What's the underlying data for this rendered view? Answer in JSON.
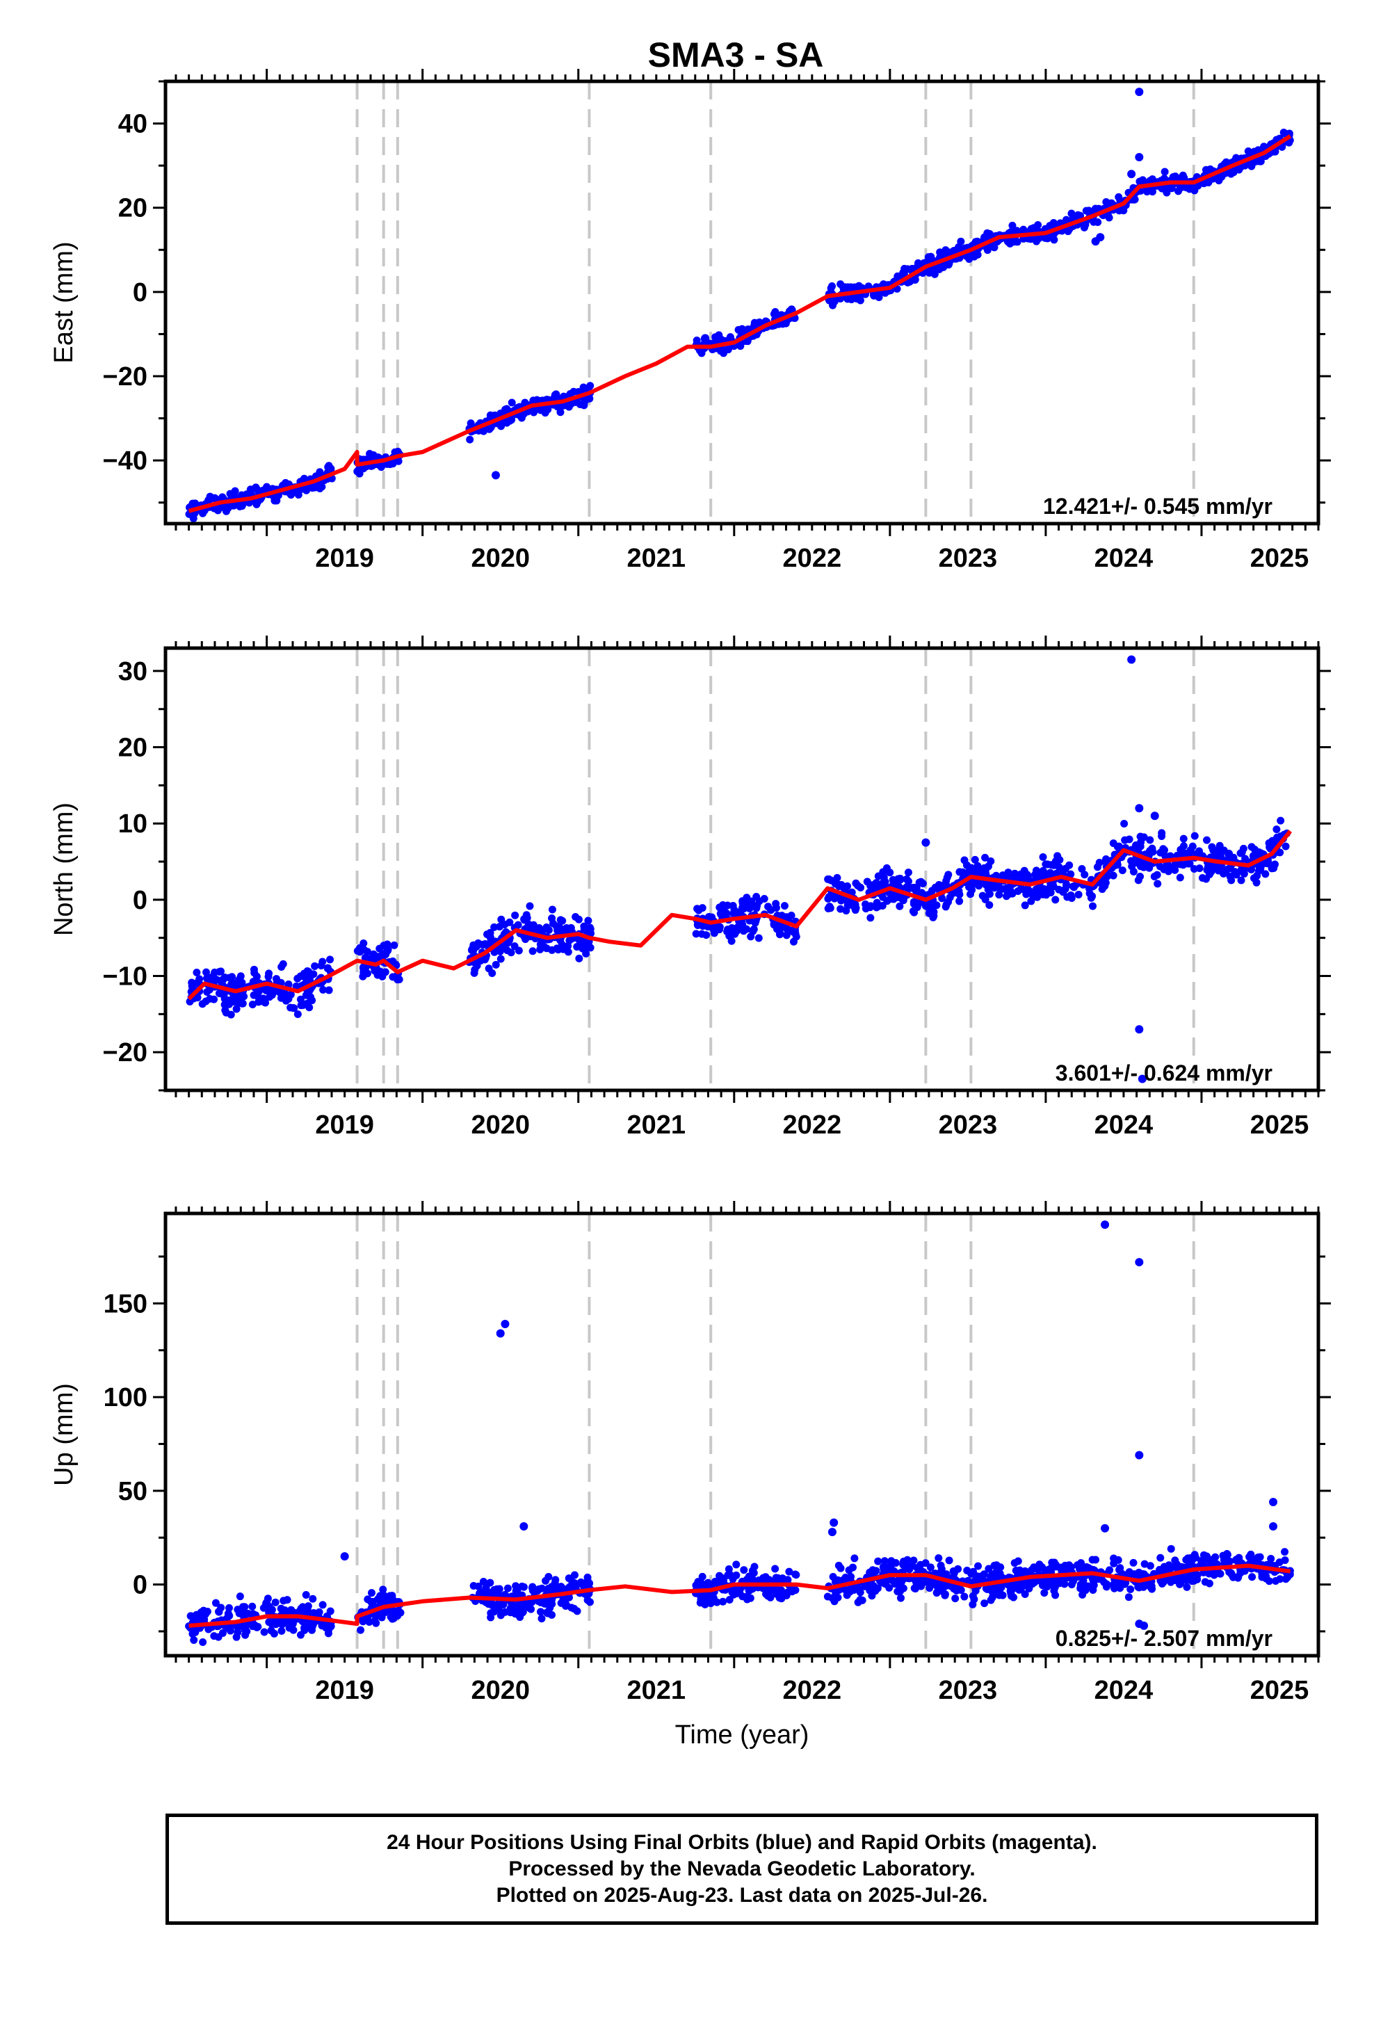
{
  "title": "SMA3 - SA",
  "footer": {
    "line1": "24 Hour Positions Using Final Orbits (blue) and Rapid Orbits (magenta).",
    "line2": "Processed by the Nevada Geodetic Laboratory.",
    "line3": "Plotted on 2025-Aug-23. Last data on 2025-Jul-26."
  },
  "colors": {
    "points": "#0000ff",
    "fit": "#ff0000",
    "events": "#c8c8c8",
    "frame": "#000000"
  },
  "chart_data": [
    {
      "type": "scatter",
      "name": "east",
      "ylabel": "East (mm)",
      "xlabel": "",
      "xlim": [
        2018.35,
        2025.75
      ],
      "ylim": [
        -55,
        50
      ],
      "yticks": [
        -40,
        -20,
        0,
        20,
        40
      ],
      "xticks": [
        2019,
        2020,
        2021,
        2022,
        2023,
        2024,
        2025
      ],
      "rate_label": "12.421+/- 0.545 mm/yr",
      "event_lines": [
        2019.58,
        2019.75,
        2019.84,
        2021.07,
        2021.85,
        2023.23,
        2023.52,
        2024.95
      ],
      "data_segments": [
        [
          2018.5,
          2019.42
        ],
        [
          2019.58,
          2019.86
        ],
        [
          2020.3,
          2021.08
        ],
        [
          2021.75,
          2022.4
        ],
        [
          2022.6,
          2025.57
        ]
      ],
      "fit": {
        "x": [
          2018.5,
          2018.7,
          2018.9,
          2019.1,
          2019.3,
          2019.5,
          2019.58,
          2019.58,
          2019.75,
          2019.84,
          2020.0,
          2020.3,
          2020.5,
          2020.7,
          2020.9,
          2021.07,
          2021.3,
          2021.5,
          2021.7,
          2021.85,
          2022.0,
          2022.2,
          2022.4,
          2022.6,
          2022.8,
          2023.0,
          2023.23,
          2023.52,
          2023.7,
          2024.0,
          2024.3,
          2024.5,
          2024.6,
          2024.8,
          2024.95,
          2025.2,
          2025.4,
          2025.57
        ],
        "y": [
          -52,
          -50,
          -49,
          -47,
          -45,
          -42,
          -38,
          -41,
          -40,
          -39,
          -38,
          -33,
          -30,
          -27,
          -26,
          -24,
          -20,
          -17,
          -13,
          -13,
          -12,
          -8,
          -5,
          -1,
          0,
          1,
          6,
          10,
          13,
          14,
          18,
          21,
          25,
          26,
          26,
          30,
          33,
          37
        ]
      },
      "outliers": [
        [
          2024.6,
          47.5
        ],
        [
          2024.6,
          32
        ],
        [
          2024.55,
          28
        ],
        [
          2020.47,
          -43.5
        ],
        [
          2024.32,
          12
        ],
        [
          2024.35,
          13
        ]
      ]
    },
    {
      "type": "scatter",
      "name": "north",
      "ylabel": "North (mm)",
      "xlabel": "",
      "xlim": [
        2018.35,
        2025.75
      ],
      "ylim": [
        -25,
        33
      ],
      "yticks": [
        -20,
        -10,
        0,
        10,
        20,
        30
      ],
      "xticks": [
        2019,
        2020,
        2021,
        2022,
        2023,
        2024,
        2025
      ],
      "rate_label": "3.601+/- 0.624 mm/yr",
      "event_lines": [
        2019.58,
        2019.75,
        2019.84,
        2021.07,
        2021.85,
        2023.23,
        2023.52,
        2024.95
      ],
      "data_segments": [
        [
          2018.5,
          2019.42
        ],
        [
          2019.58,
          2019.86
        ],
        [
          2020.3,
          2021.08
        ],
        [
          2021.75,
          2022.4
        ],
        [
          2022.6,
          2025.57
        ]
      ],
      "fit": {
        "x": [
          2018.5,
          2018.6,
          2018.8,
          2019.0,
          2019.2,
          2019.4,
          2019.58,
          2019.7,
          2019.75,
          2019.84,
          2020.0,
          2020.2,
          2020.4,
          2020.6,
          2020.8,
          2021.0,
          2021.07,
          2021.2,
          2021.4,
          2021.6,
          2021.75,
          2021.85,
          2022.0,
          2022.2,
          2022.4,
          2022.6,
          2022.8,
          2023.0,
          2023.23,
          2023.4,
          2023.52,
          2023.7,
          2023.9,
          2024.1,
          2024.3,
          2024.5,
          2024.7,
          2024.95,
          2025.1,
          2025.3,
          2025.45,
          2025.57
        ],
        "y": [
          -13,
          -11,
          -12,
          -11,
          -12,
          -10,
          -8,
          -8.5,
          -8,
          -9.5,
          -8,
          -9,
          -7,
          -4,
          -5,
          -4.5,
          -5,
          -5.5,
          -6,
          -2,
          -2.5,
          -3,
          -2.5,
          -2,
          -3.5,
          1.5,
          0,
          1.5,
          0,
          1.5,
          3,
          2.5,
          2,
          3,
          2,
          6.5,
          5,
          5.5,
          5,
          4.5,
          6,
          9
        ]
      },
      "outliers": [
        [
          2024.55,
          31.5
        ],
        [
          2024.6,
          -17
        ],
        [
          2024.62,
          -23.5
        ],
        [
          2023.23,
          7.5
        ],
        [
          2024.6,
          12
        ],
        [
          2024.7,
          11
        ]
      ]
    },
    {
      "type": "scatter",
      "name": "up",
      "ylabel": "Up (mm)",
      "xlabel": "Time (year)",
      "xlim": [
        2018.35,
        2025.75
      ],
      "ylim": [
        -38,
        198
      ],
      "yticks": [
        0,
        50,
        100,
        150
      ],
      "xticks": [
        2019,
        2020,
        2021,
        2022,
        2023,
        2024,
        2025
      ],
      "rate_label": "0.825+/- 2.507 mm/yr",
      "event_lines": [
        2019.58,
        2019.75,
        2019.84,
        2021.07,
        2021.85,
        2023.23,
        2023.52,
        2024.95
      ],
      "data_segments": [
        [
          2018.5,
          2019.42
        ],
        [
          2019.58,
          2019.86
        ],
        [
          2020.3,
          2021.08
        ],
        [
          2021.75,
          2022.4
        ],
        [
          2022.6,
          2025.57
        ]
      ],
      "fit": {
        "x": [
          2018.5,
          2018.8,
          2019.0,
          2019.2,
          2019.4,
          2019.58,
          2019.58,
          2019.75,
          2020.0,
          2020.3,
          2020.6,
          2020.9,
          2021.07,
          2021.3,
          2021.6,
          2021.85,
          2022.0,
          2022.4,
          2022.6,
          2023.0,
          2023.23,
          2023.52,
          2023.9,
          2024.3,
          2024.6,
          2024.95,
          2025.3,
          2025.57
        ],
        "y": [
          -22,
          -20,
          -17,
          -17,
          -19,
          -21,
          -17,
          -12,
          -9,
          -7,
          -8,
          -5,
          -3,
          -1,
          -4,
          -3,
          0,
          0,
          -2,
          5,
          5,
          -1,
          4,
          6,
          2,
          8,
          10,
          7
        ]
      },
      "outliers": [
        [
          2020.5,
          134
        ],
        [
          2020.53,
          139
        ],
        [
          2024.38,
          192
        ],
        [
          2024.6,
          172
        ],
        [
          2024.6,
          69
        ],
        [
          2020.65,
          31
        ],
        [
          2022.64,
          33
        ],
        [
          2022.63,
          28
        ],
        [
          2025.46,
          44
        ],
        [
          2025.46,
          31
        ],
        [
          2019.5,
          15
        ],
        [
          2024.38,
          30
        ],
        [
          2024.63,
          -22
        ],
        [
          2024.6,
          -21
        ]
      ]
    }
  ]
}
